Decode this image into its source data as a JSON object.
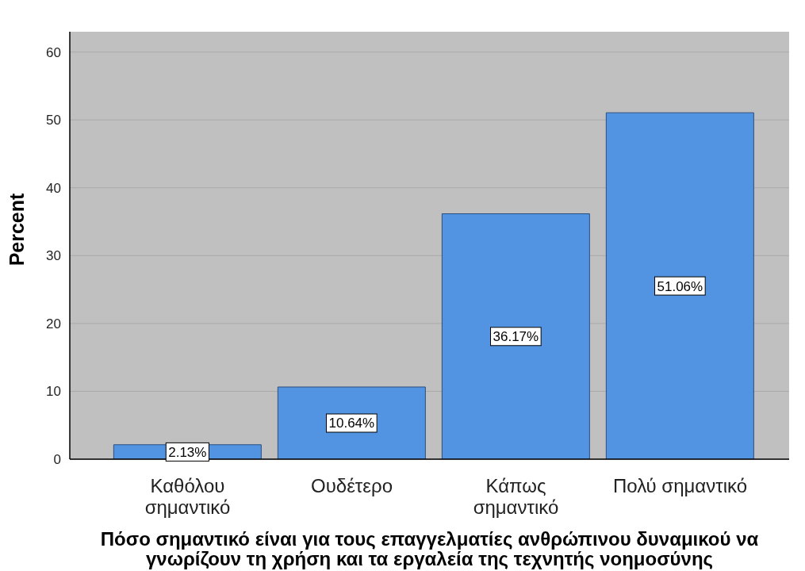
{
  "chart_data": {
    "type": "bar",
    "xlabel": "Πόσο σημαντικό είναι για τους επαγγελματίες ανθρώπινου δυναμικού να γνωρίζουν τη χρήση και τα εργαλεία της τεχνητής νοημοσύνης",
    "ylabel": "Percent",
    "categories": [
      "Καθόλου σημαντικό",
      "Ουδέτερο",
      "Κάπως σημαντικό",
      "Πολύ σημαντικό"
    ],
    "values": [
      2.13,
      10.64,
      36.17,
      51.06
    ],
    "value_labels": [
      "2.13%",
      "10.64%",
      "36.17%",
      "51.06%"
    ],
    "color": "#5294e2",
    "ylim": [
      0,
      63
    ],
    "yticks": [
      0,
      10,
      20,
      30,
      40,
      50,
      60
    ],
    "grid": "y"
  }
}
